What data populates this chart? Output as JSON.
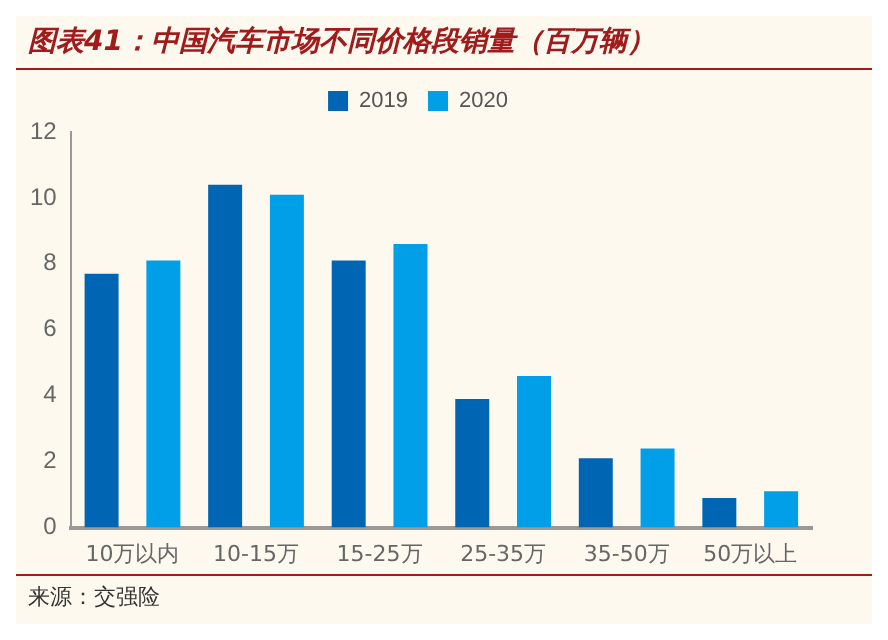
{
  "chart_data": {
    "type": "bar",
    "title": "图表41：中国汽车市场不同价格段销量（百万辆）",
    "categories": [
      "10万以内",
      "10-15万",
      "15-25万",
      "25-35万",
      "35-50万",
      "50万以上"
    ],
    "series": [
      {
        "name": "2019",
        "color": "#0066b3",
        "values": [
          7.7,
          10.4,
          8.1,
          3.9,
          2.1,
          0.9
        ]
      },
      {
        "name": "2020",
        "color": "#009fe8",
        "values": [
          8.1,
          10.1,
          8.6,
          4.6,
          2.4,
          1.1
        ]
      }
    ],
    "ylim": [
      0,
      12
    ],
    "yticks": [
      0,
      2,
      4,
      6,
      8,
      10,
      12
    ],
    "grid": false,
    "legend": "top",
    "annotations": [
      "来源：交强险"
    ]
  }
}
